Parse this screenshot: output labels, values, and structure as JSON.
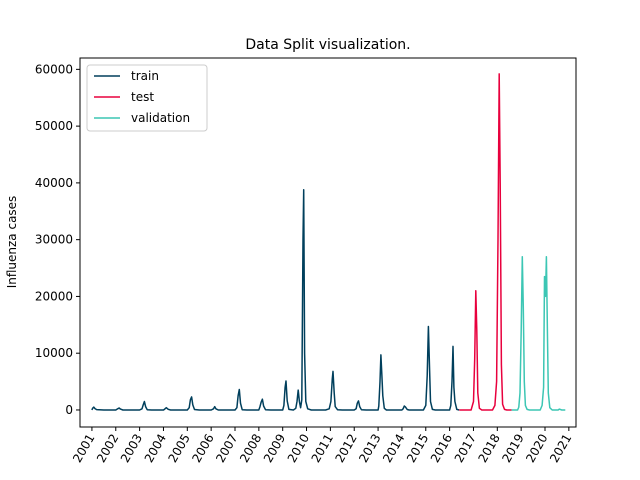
{
  "chart_data": {
    "type": "line",
    "title": "Data Split visualization.",
    "xlabel": "",
    "ylabel": "Influenza cases",
    "xlim": [
      2000.5,
      2021.3
    ],
    "ylim": [
      -3000,
      62000
    ],
    "yticks": [
      0,
      10000,
      20000,
      30000,
      40000,
      50000,
      60000
    ],
    "xticks": [
      "2001",
      "2002",
      "2003",
      "2004",
      "2005",
      "2006",
      "2007",
      "2008",
      "2009",
      "2010",
      "2011",
      "2012",
      "2013",
      "2014",
      "2015",
      "2016",
      "2017",
      "2018",
      "2019",
      "2020",
      "2021"
    ],
    "grid": false,
    "legend": "top-left",
    "series": [
      {
        "name": "train",
        "color": "#003f5c",
        "points": [
          [
            2001.0,
            0
          ],
          [
            2001.03,
            300
          ],
          [
            2001.08,
            500
          ],
          [
            2001.13,
            250
          ],
          [
            2001.2,
            60
          ],
          [
            2001.5,
            0
          ],
          [
            2002.0,
            0
          ],
          [
            2002.08,
            200
          ],
          [
            2002.14,
            350
          ],
          [
            2002.2,
            150
          ],
          [
            2002.3,
            0
          ],
          [
            2003.0,
            0
          ],
          [
            2003.1,
            200
          ],
          [
            2003.15,
            900
          ],
          [
            2003.2,
            1500
          ],
          [
            2003.25,
            600
          ],
          [
            2003.32,
            50
          ],
          [
            2003.5,
            0
          ],
          [
            2004.0,
            0
          ],
          [
            2004.05,
            150
          ],
          [
            2004.12,
            400
          ],
          [
            2004.2,
            120
          ],
          [
            2004.3,
            0
          ],
          [
            2005.0,
            0
          ],
          [
            2005.08,
            400
          ],
          [
            2005.13,
            1800
          ],
          [
            2005.18,
            2300
          ],
          [
            2005.23,
            900
          ],
          [
            2005.3,
            80
          ],
          [
            2005.5,
            0
          ],
          [
            2006.0,
            0
          ],
          [
            2006.1,
            200
          ],
          [
            2006.15,
            600
          ],
          [
            2006.2,
            200
          ],
          [
            2006.3,
            0
          ],
          [
            2007.0,
            0
          ],
          [
            2007.08,
            400
          ],
          [
            2007.13,
            2500
          ],
          [
            2007.18,
            3600
          ],
          [
            2007.23,
            1200
          ],
          [
            2007.3,
            50
          ],
          [
            2007.5,
            0
          ],
          [
            2008.0,
            0
          ],
          [
            2008.05,
            600
          ],
          [
            2008.1,
            1400
          ],
          [
            2008.15,
            1900
          ],
          [
            2008.2,
            700
          ],
          [
            2008.28,
            50
          ],
          [
            2008.5,
            0
          ],
          [
            2009.0,
            0
          ],
          [
            2009.05,
            800
          ],
          [
            2009.1,
            4000
          ],
          [
            2009.14,
            5100
          ],
          [
            2009.19,
            1600
          ],
          [
            2009.26,
            100
          ],
          [
            2009.45,
            0
          ],
          [
            2009.55,
            300
          ],
          [
            2009.6,
            1500
          ],
          [
            2009.65,
            3500
          ],
          [
            2009.7,
            1500
          ],
          [
            2009.75,
            400
          ],
          [
            2009.8,
            1800
          ],
          [
            2009.85,
            30000
          ],
          [
            2009.88,
            38800
          ],
          [
            2009.92,
            10000
          ],
          [
            2009.97,
            1500
          ],
          [
            2010.05,
            200
          ],
          [
            2010.2,
            0
          ],
          [
            2010.8,
            0
          ],
          [
            2010.95,
            200
          ],
          [
            2011.02,
            1500
          ],
          [
            2011.08,
            5500
          ],
          [
            2011.11,
            6800
          ],
          [
            2011.16,
            3000
          ],
          [
            2011.2,
            600
          ],
          [
            2011.3,
            50
          ],
          [
            2011.5,
            0
          ],
          [
            2012.0,
            0
          ],
          [
            2012.08,
            200
          ],
          [
            2012.13,
            1200
          ],
          [
            2012.18,
            1600
          ],
          [
            2012.23,
            600
          ],
          [
            2012.3,
            50
          ],
          [
            2012.5,
            0
          ],
          [
            2013.0,
            0
          ],
          [
            2013.03,
            700
          ],
          [
            2013.08,
            5000
          ],
          [
            2013.12,
            9700
          ],
          [
            2013.16,
            6000
          ],
          [
            2013.2,
            2500
          ],
          [
            2013.26,
            300
          ],
          [
            2013.35,
            0
          ],
          [
            2014.0,
            0
          ],
          [
            2014.05,
            200
          ],
          [
            2014.1,
            700
          ],
          [
            2014.15,
            500
          ],
          [
            2014.22,
            80
          ],
          [
            2014.3,
            0
          ],
          [
            2014.9,
            0
          ],
          [
            2015.0,
            800
          ],
          [
            2015.06,
            6000
          ],
          [
            2015.11,
            14700
          ],
          [
            2015.16,
            7000
          ],
          [
            2015.2,
            1500
          ],
          [
            2015.28,
            100
          ],
          [
            2015.4,
            0
          ],
          [
            2016.0,
            0
          ],
          [
            2016.05,
            800
          ],
          [
            2016.1,
            5000
          ],
          [
            2016.14,
            11200
          ],
          [
            2016.18,
            4000
          ],
          [
            2016.22,
            1500
          ],
          [
            2016.3,
            100
          ],
          [
            2016.4,
            0
          ]
        ]
      },
      {
        "name": "test",
        "color": "#e8003d",
        "points": [
          [
            2016.4,
            0
          ],
          [
            2016.9,
            0
          ],
          [
            2017.0,
            1500
          ],
          [
            2017.05,
            9000
          ],
          [
            2017.1,
            21000
          ],
          [
            2017.14,
            14000
          ],
          [
            2017.18,
            3000
          ],
          [
            2017.25,
            300
          ],
          [
            2017.35,
            0
          ],
          [
            2017.8,
            0
          ],
          [
            2017.9,
            800
          ],
          [
            2017.97,
            5000
          ],
          [
            2018.03,
            30000
          ],
          [
            2018.08,
            59200
          ],
          [
            2018.12,
            40000
          ],
          [
            2018.17,
            8000
          ],
          [
            2018.22,
            1000
          ],
          [
            2018.3,
            100
          ],
          [
            2018.4,
            0
          ],
          [
            2018.6,
            0
          ]
        ]
      },
      {
        "name": "validation",
        "color": "#3cc6b4",
        "points": [
          [
            2018.6,
            0
          ],
          [
            2018.85,
            0
          ],
          [
            2018.9,
            500
          ],
          [
            2018.95,
            3000
          ],
          [
            2019.0,
            14000
          ],
          [
            2019.05,
            27000
          ],
          [
            2019.09,
            18000
          ],
          [
            2019.13,
            5000
          ],
          [
            2019.18,
            800
          ],
          [
            2019.25,
            100
          ],
          [
            2019.35,
            0
          ],
          [
            2019.8,
            0
          ],
          [
            2019.88,
            800
          ],
          [
            2019.94,
            4000
          ],
          [
            2019.98,
            23500
          ],
          [
            2020.02,
            20000
          ],
          [
            2020.06,
            27000
          ],
          [
            2020.1,
            14000
          ],
          [
            2020.14,
            3000
          ],
          [
            2020.2,
            400
          ],
          [
            2020.3,
            0
          ],
          [
            2020.55,
            0
          ],
          [
            2020.6,
            150
          ],
          [
            2020.7,
            0
          ],
          [
            2020.85,
            0
          ]
        ]
      }
    ]
  }
}
